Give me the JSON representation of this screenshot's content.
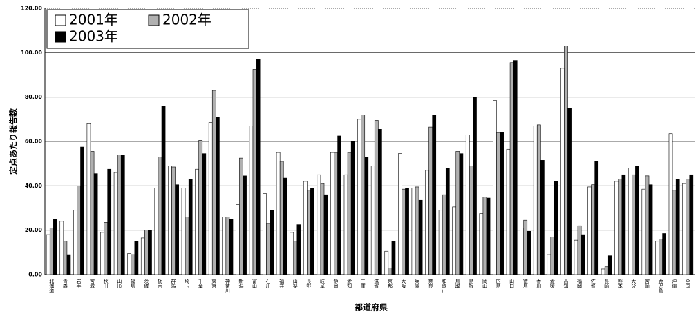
{
  "chart_data": {
    "type": "bar",
    "y_label": "定点あたり報告数",
    "x_label": "都道府県",
    "categories": [
      "北海道",
      "青森",
      "岩手",
      "宮城",
      "秋田",
      "山形",
      "福島",
      "茨城",
      "栃木",
      "群馬",
      "埼玉",
      "千葉",
      "東京",
      "神奈川",
      "新潟",
      "富山",
      "石川",
      "福井",
      "山梨",
      "長野",
      "岐阜",
      "静岡",
      "愛知",
      "三重",
      "滋賀",
      "京都",
      "大阪",
      "兵庫",
      "奈良",
      "和歌山",
      "鳥取",
      "島根",
      "岡山",
      "広島",
      "山口",
      "徳島",
      "香川",
      "愛媛",
      "高知",
      "福岡",
      "佐賀",
      "長崎",
      "熊本",
      "大分",
      "宮崎",
      "鹿児島",
      "沖縄",
      "全国"
    ],
    "series": [
      {
        "name": "2001年",
        "color": "#ffffff",
        "values": [
          18,
          24,
          29,
          68,
          19,
          46,
          9.5,
          16.5,
          39,
          49,
          39,
          47.5,
          68.5,
          26,
          31.5,
          67,
          36.5,
          55,
          19,
          42,
          45,
          55,
          45,
          70,
          49,
          10.5,
          54.5,
          39,
          47,
          29,
          30.5,
          63,
          27.5,
          78.5,
          56.5,
          21,
          67,
          9,
          93,
          15.5,
          39.5,
          2.5,
          42,
          48,
          38.5,
          15,
          63.5,
          41
        ]
      },
      {
        "name": "2002年",
        "color": "#b0b0b0",
        "values": [
          21,
          15,
          40,
          55.5,
          23.5,
          54,
          9,
          20,
          53,
          48.5,
          26,
          60.5,
          83,
          26,
          52.5,
          92.5,
          23,
          51,
          15,
          38,
          41,
          55,
          55,
          72,
          69.5,
          3,
          38.5,
          39.5,
          66.5,
          36,
          55.5,
          49,
          35,
          64,
          95.5,
          24.5,
          67.5,
          17,
          103,
          22,
          40.5,
          3.5,
          43,
          45,
          44.5,
          16,
          38,
          43
        ]
      },
      {
        "name": "2003年",
        "color": "#000000",
        "values": [
          25,
          9,
          57.5,
          45.5,
          47.5,
          54,
          15,
          20,
          76,
          40.5,
          43,
          54.5,
          71,
          25,
          44.5,
          97,
          29,
          43.5,
          22.5,
          39,
          36,
          62.5,
          60,
          53,
          65.5,
          15,
          39,
          33.5,
          72,
          48,
          54.5,
          80,
          34.5,
          64,
          96.5,
          19.5,
          51.5,
          42,
          75,
          18,
          51,
          8.5,
          45,
          49,
          40.5,
          18.5,
          43,
          45
        ]
      }
    ],
    "ylim": [
      0,
      120
    ],
    "yticks": [
      {
        "value": 0,
        "label": "0.00"
      },
      {
        "value": 20,
        "label": "20.00"
      },
      {
        "value": 40,
        "label": "40.00"
      },
      {
        "value": 60,
        "label": "60.00"
      },
      {
        "value": 80,
        "label": "80.00"
      },
      {
        "value": 100,
        "label": "100.00"
      },
      {
        "value": 120,
        "label": "120.00"
      }
    ],
    "grid": true,
    "legend": "upper left"
  }
}
